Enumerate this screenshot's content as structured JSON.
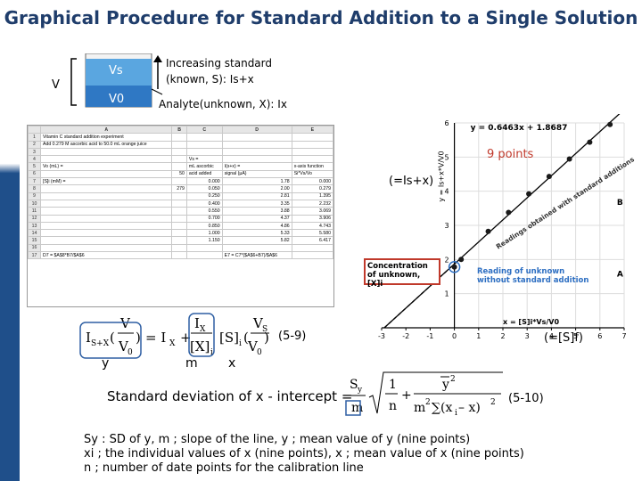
{
  "title": "Graphical Procedure for Standard Addition to a Single Solution",
  "tube": {
    "v_label": "V",
    "vs_label": "Vs",
    "v0_label": "V0",
    "increasing_line1": "Increasing standard",
    "increasing_line2": "(known, S): Is+x",
    "analyte_label": "Analyte(unknown, X): Ix"
  },
  "spreadsheet": {
    "columns": [
      "",
      "A",
      "B",
      "C",
      "D",
      "E"
    ],
    "rows": [
      [
        "1",
        "Vitamin C standard addition experiment",
        "",
        "",
        "",
        ""
      ],
      [
        "2",
        "Add 0.279 M ascorbic acid to 50.0 mL orange juice",
        "",
        "",
        "",
        ""
      ],
      [
        "3",
        "",
        "",
        "",
        "",
        ""
      ],
      [
        "4",
        "",
        "",
        "Vs =",
        "",
        ""
      ],
      [
        "5",
        "Vo (mL) =",
        "",
        "mL ascorbic",
        "I(s+x) =",
        "x-axis function",
        "y-axis function"
      ],
      [
        "6",
        "",
        "50",
        "acid added",
        "signal (μA)",
        "Si*Vs/Vo",
        "I(s+x)*V/Vo"
      ],
      [
        "7",
        "[S]i (mM) =",
        "",
        "0.000",
        "1.78",
        "0.000",
        "1.780"
      ],
      [
        "8",
        "",
        "279",
        "0.050",
        "2.00",
        "0.279",
        "2.002"
      ],
      [
        "9",
        "",
        "",
        "0.250",
        "2.81",
        "1.395",
        "2.824"
      ],
      [
        "10",
        "",
        "",
        "0.400",
        "3.35",
        "2.232",
        "3.377"
      ],
      [
        "11",
        "",
        "",
        "0.550",
        "3.88",
        "3.069",
        "3.923"
      ],
      [
        "12",
        "",
        "",
        "0.700",
        "4.37",
        "3.906",
        "4.431"
      ],
      [
        "13",
        "",
        "",
        "0.850",
        "4.86",
        "4.743",
        "4.943"
      ],
      [
        "14",
        "",
        "",
        "1.000",
        "5.33",
        "5.580",
        "5.437"
      ],
      [
        "15",
        "",
        "",
        "1.150",
        "5.82",
        "6.417",
        "5.954"
      ],
      [
        "16",
        "",
        "",
        "",
        "",
        "",
        ""
      ],
      [
        "17",
        "D7 = $A$8*B7/$A$6",
        "",
        "",
        "E7 = C7*($A$6+B7)/$A$6",
        "",
        ""
      ]
    ]
  },
  "annotations": {
    "nine_points": "9 points",
    "is_plus_x": "(=Is+x)",
    "conc_unknown": "Concentration of unknown, [X]i",
    "reading_unknown": "Reading of unknown without standard addition",
    "slope_note": "Readings obtained with standard additions",
    "fit_eq": "y = 0.6463x + 1.8687",
    "xaxis_fn": "x = [S]i*Vs/V0",
    "s_f": "(=[S]f)",
    "eq_59": "(5-9)",
    "eq_510": "(5-10)",
    "under_y": "y",
    "under_m": "m",
    "under_x": "x",
    "stdev_label": "Standard deviation of x - intercept =",
    "def1": "Sy : SD of y,  m ; slope of the line,  y ; mean value of y (nine points)",
    "def2": "xi ; the individual values of x (nine points),  x ; mean value of x (nine points)",
    "def3": "n ; number of date points for the calibration line"
  },
  "chart_data": {
    "type": "scatter",
    "x": [
      0.0,
      0.279,
      1.395,
      2.232,
      3.069,
      3.906,
      4.743,
      5.58,
      6.417
    ],
    "y": [
      1.78,
      2.002,
      2.824,
      3.377,
      3.923,
      4.431,
      4.943,
      5.437,
      5.954
    ],
    "fit": {
      "slope": 0.6463,
      "intercept": 1.8687
    },
    "xlim": [
      -3,
      7
    ],
    "ylim": [
      0,
      6
    ],
    "xticks": [
      "-3",
      "-2",
      "-1",
      "0",
      "1",
      "2",
      "3",
      "4",
      "5",
      "6",
      "7"
    ],
    "yticks": [
      "1",
      "2",
      "3",
      "4",
      "5",
      "6"
    ],
    "ylabel": "y = Is+x*V/V0",
    "point_labels": {
      "A": "A",
      "B": "B"
    },
    "colors": {
      "points": "#1a1a1a",
      "line": "#000000",
      "highlight": "#c0392b"
    }
  }
}
